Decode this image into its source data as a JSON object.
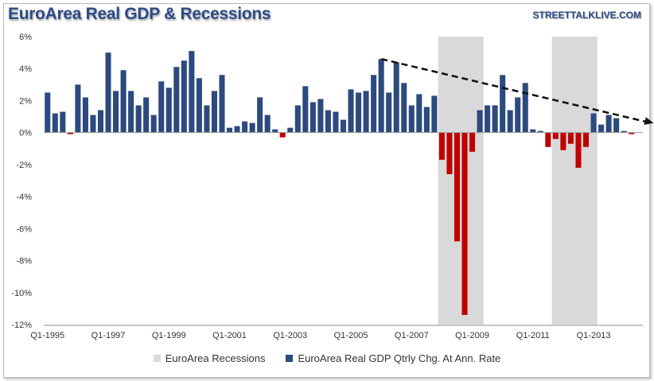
{
  "header": {
    "title": "EuroArea Real GDP & Recessions",
    "source": "STREETTALKLIVE.COM"
  },
  "colors": {
    "positive": "#2c4a7e",
    "negative": "#c00000",
    "recession": "#d9d9d9",
    "trend": "#111111"
  },
  "chart_data": {
    "type": "bar",
    "title": "EuroArea Real GDP & Recessions",
    "ylim": [
      -12,
      6
    ],
    "y_ticks": [
      "6%",
      "4%",
      "2%",
      "0%",
      "-2%",
      "-4%",
      "-6%",
      "-8%",
      "-10%",
      "-12%"
    ],
    "x_ticks": [
      "Q1-1995",
      "Q1-1997",
      "Q1-1999",
      "Q1-2001",
      "Q1-2003",
      "Q1-2005",
      "Q1-2007",
      "Q1-2009",
      "Q1-2011",
      "Q1-2013"
    ],
    "legend": [
      "EuroArea Recessions",
      "EuroArea Real GDP Qtrly Chg. At Ann. Rate"
    ],
    "legend_position": "bottom",
    "recessions": [
      {
        "start": "Q1-2008",
        "end": "Q2-2009"
      },
      {
        "start": "Q4-2011",
        "end": "Q1-2013"
      }
    ],
    "trendline": {
      "start": {
        "x": "Q1-2006",
        "y": 4.6
      },
      "end": {
        "x": "Q4-2014",
        "y": 0.6
      }
    },
    "series": [
      {
        "name": "EuroArea Real GDP Qtrly Chg. At Ann. Rate",
        "start": "Q1-1995",
        "values": [
          2.5,
          1.2,
          1.3,
          -0.1,
          3.0,
          2.2,
          1.1,
          1.4,
          5.0,
          2.6,
          3.9,
          2.6,
          1.7,
          2.2,
          1.1,
          3.2,
          2.8,
          4.1,
          4.5,
          5.1,
          3.4,
          1.7,
          2.6,
          3.6,
          0.3,
          0.4,
          0.7,
          0.6,
          2.2,
          1.1,
          0.2,
          -0.3,
          0.3,
          1.7,
          2.9,
          1.9,
          2.1,
          1.4,
          1.3,
          0.8,
          2.7,
          2.5,
          2.6,
          3.6,
          4.6,
          2.5,
          4.4,
          3.1,
          1.7,
          2.4,
          1.6,
          2.3,
          -1.7,
          -2.6,
          -6.8,
          -11.4,
          -1.2,
          1.4,
          1.7,
          1.7,
          3.6,
          1.4,
          2.2,
          3.1,
          0.2,
          0.1,
          -0.9,
          -0.4,
          -1.1,
          -0.7,
          -2.2,
          -0.9,
          1.2,
          0.5,
          1.1,
          0.9,
          0.1,
          -0.1
        ]
      }
    ]
  }
}
